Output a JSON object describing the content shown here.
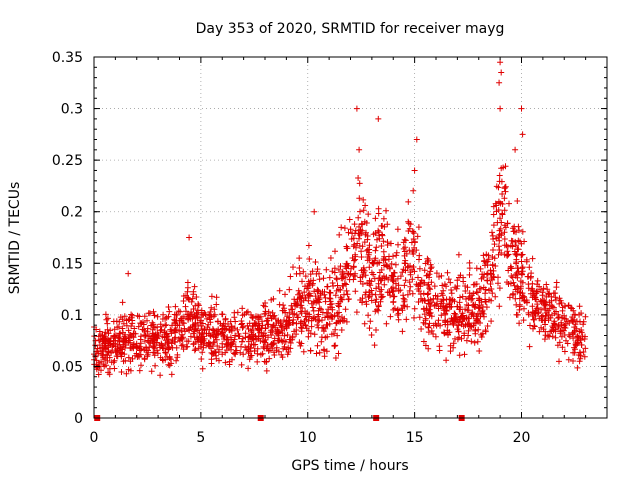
{
  "chart_data": {
    "type": "scatter",
    "title": "Day 353 of 2020, SRMTID for receiver mayg",
    "xlabel": "GPS time / hours",
    "ylabel": "SRMTID / TECUs",
    "xlim": [
      0,
      24
    ],
    "ylim": [
      0,
      0.35
    ],
    "xticks": [
      0,
      5,
      10,
      15,
      20
    ],
    "xtick_labels": [
      "0",
      "5",
      "10",
      "15",
      "20"
    ],
    "yticks": [
      0,
      0.05,
      0.1,
      0.15,
      0.2,
      0.25,
      0.3,
      0.35
    ],
    "ytick_labels": [
      "0",
      "0.05",
      "0.1",
      "0.15",
      "0.2",
      "0.25",
      "0.3",
      "0.35"
    ],
    "grid": true,
    "marker": "+",
    "color": "#e00000",
    "baseline_marker_x": [
      0.15,
      7.8,
      13.2,
      17.2
    ],
    "envelope": {
      "x": [
        0.0,
        1.0,
        2.0,
        3.0,
        4.0,
        4.4,
        5.0,
        6.0,
        7.0,
        8.0,
        9.0,
        9.6,
        10.0,
        10.5,
        11.0,
        11.5,
        12.0,
        12.3,
        12.7,
        13.0,
        13.3,
        13.7,
        14.0,
        14.5,
        15.0,
        15.3,
        15.7,
        16.0,
        16.5,
        17.0,
        17.5,
        18.0,
        18.5,
        18.8,
        19.0,
        19.3,
        19.6,
        20.0,
        20.3,
        20.7,
        21.0,
        21.5,
        22.0,
        22.5,
        23.0
      ],
      "mean": [
        0.068,
        0.072,
        0.078,
        0.075,
        0.08,
        0.1,
        0.085,
        0.08,
        0.08,
        0.082,
        0.088,
        0.1,
        0.115,
        0.11,
        0.105,
        0.115,
        0.15,
        0.17,
        0.17,
        0.12,
        0.15,
        0.15,
        0.12,
        0.14,
        0.16,
        0.12,
        0.12,
        0.11,
        0.1,
        0.1,
        0.11,
        0.1,
        0.13,
        0.17,
        0.2,
        0.18,
        0.15,
        0.14,
        0.12,
        0.11,
        0.1,
        0.1,
        0.09,
        0.08,
        0.07
      ],
      "spread": [
        0.022,
        0.025,
        0.025,
        0.025,
        0.025,
        0.035,
        0.028,
        0.028,
        0.028,
        0.028,
        0.03,
        0.04,
        0.045,
        0.04,
        0.04,
        0.045,
        0.055,
        0.06,
        0.06,
        0.045,
        0.055,
        0.055,
        0.045,
        0.05,
        0.055,
        0.045,
        0.045,
        0.04,
        0.035,
        0.035,
        0.04,
        0.035,
        0.045,
        0.06,
        0.07,
        0.06,
        0.05,
        0.05,
        0.04,
        0.035,
        0.035,
        0.035,
        0.03,
        0.03,
        0.025
      ],
      "points_per_hour": 95
    },
    "peaks": [
      {
        "x": 4.45,
        "y": 0.175
      },
      {
        "x": 12.3,
        "y": 0.3
      },
      {
        "x": 13.3,
        "y": 0.29
      },
      {
        "x": 15.1,
        "y": 0.27
      },
      {
        "x": 19.0,
        "y": 0.345
      },
      {
        "x": 19.05,
        "y": 0.335
      },
      {
        "x": 18.95,
        "y": 0.325
      },
      {
        "x": 19.0,
        "y": 0.3
      },
      {
        "x": 20.0,
        "y": 0.3
      },
      {
        "x": 20.05,
        "y": 0.275
      },
      {
        "x": 19.7,
        "y": 0.26
      },
      {
        "x": 15.0,
        "y": 0.24
      },
      {
        "x": 12.4,
        "y": 0.26
      },
      {
        "x": 10.3,
        "y": 0.2
      },
      {
        "x": 9.6,
        "y": 0.155
      },
      {
        "x": 1.6,
        "y": 0.14
      }
    ]
  }
}
